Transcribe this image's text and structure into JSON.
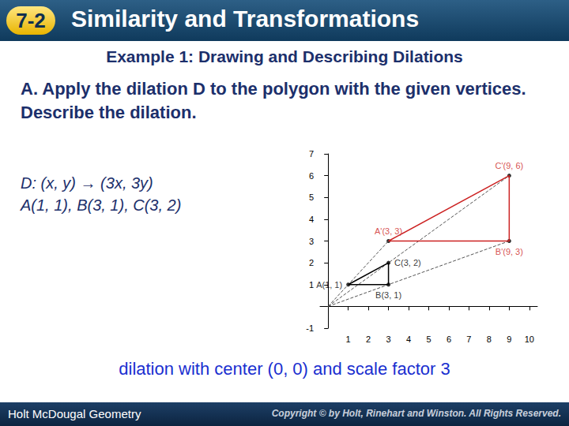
{
  "header": {
    "badge": "7-2",
    "title": "Similarity and Transformations"
  },
  "example_title": "Example 1: Drawing and Describing Dilations",
  "problem": "A.  Apply the dilation D to the polygon with the given vertices. Describe the dilation.",
  "given": [
    "D: (x, y) → (3x, 3y)",
    "A(1, 1), B(3, 1), C(3, 2)"
  ],
  "chart_data": {
    "type": "line",
    "xlim": [
      -0.4,
      10.4
    ],
    "ylim": [
      -1,
      7
    ],
    "xticks": [
      1,
      2,
      3,
      4,
      5,
      6,
      7,
      8,
      9,
      10
    ],
    "yticks": [
      -1,
      1,
      2,
      3,
      4,
      5,
      6,
      7
    ],
    "grid": false,
    "center": {
      "x": 0,
      "y": 0
    },
    "rays": {
      "color": "#555555",
      "line_style": "dashed"
    },
    "series": [
      {
        "color": "#000000",
        "line_style": "solid",
        "points": [
          {
            "label": "A(1, 1)",
            "x": 1,
            "y": 1
          },
          {
            "label": "B(3, 1)",
            "x": 3,
            "y": 1
          },
          {
            "label": "C(3, 2)",
            "x": 3,
            "y": 2
          }
        ]
      },
      {
        "color": "#cc2222",
        "line_style": "solid",
        "points": [
          {
            "label": "A'(3, 3)",
            "x": 3,
            "y": 3
          },
          {
            "label": "B'(9, 3)",
            "x": 9,
            "y": 3
          },
          {
            "label": "C'(9, 6)",
            "x": 9,
            "y": 6
          }
        ]
      }
    ]
  },
  "answer": "dilation with center (0, 0) and scale factor 3",
  "footer": {
    "left": "Holt McDougal Geometry",
    "right": "Copyright © by Holt, Rinehart and Winston. All Rights Reserved."
  }
}
